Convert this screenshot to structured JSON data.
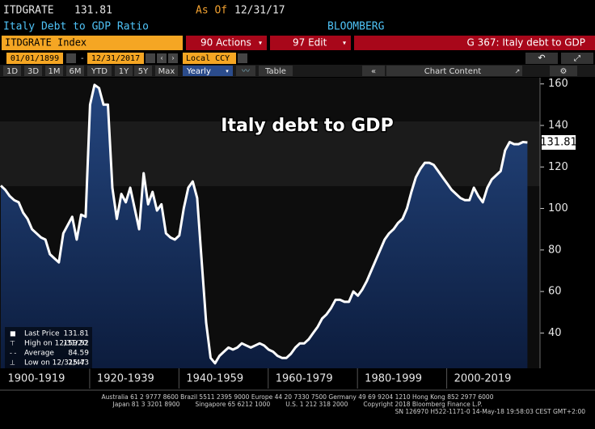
{
  "header": {
    "ticker": "ITDGRATE",
    "price": "131.81",
    "as_of_label": "As Of",
    "as_of_date": "12/31/17",
    "description": "Italy Debt to GDP Ratio",
    "source": "BLOOMBERG"
  },
  "toolbar": {
    "security": "ITDGRATE Index",
    "actions": "90 Actions",
    "edit": "97 Edit",
    "chart_name": "G 367: Italy debt to GDP",
    "start_date": "01/01/1899",
    "end_date": "12/31/2017",
    "currency": "Local CCY",
    "periods": [
      "1D",
      "3D",
      "1M",
      "6M",
      "YTD",
      "1Y",
      "5Y",
      "Max"
    ],
    "frequency": "Yearly",
    "table": "Table",
    "chart_content": "Chart Content"
  },
  "chart_data": {
    "type": "area",
    "title": "Italy debt to GDP",
    "color": "#ffffff",
    "x": [
      1899,
      1900,
      1901,
      1902,
      1903,
      1904,
      1905,
      1906,
      1907,
      1908,
      1909,
      1910,
      1911,
      1912,
      1913,
      1914,
      1915,
      1916,
      1917,
      1918,
      1919,
      1920,
      1921,
      1922,
      1923,
      1924,
      1925,
      1926,
      1927,
      1928,
      1929,
      1930,
      1931,
      1932,
      1933,
      1934,
      1935,
      1936,
      1937,
      1938,
      1939,
      1940,
      1941,
      1942,
      1943,
      1944,
      1945,
      1946,
      1947,
      1948,
      1949,
      1950,
      1951,
      1952,
      1953,
      1954,
      1955,
      1956,
      1957,
      1958,
      1959,
      1960,
      1961,
      1962,
      1963,
      1964,
      1965,
      1966,
      1967,
      1968,
      1969,
      1970,
      1971,
      1972,
      1973,
      1974,
      1975,
      1976,
      1977,
      1978,
      1979,
      1980,
      1981,
      1982,
      1983,
      1984,
      1985,
      1986,
      1987,
      1988,
      1989,
      1990,
      1991,
      1992,
      1993,
      1994,
      1995,
      1996,
      1997,
      1998,
      1999,
      2000,
      2001,
      2002,
      2003,
      2004,
      2005,
      2006,
      2007,
      2008,
      2009,
      2010,
      2011,
      2012,
      2013,
      2014,
      2015,
      2016,
      2017
    ],
    "values": [
      111,
      109,
      106,
      104,
      103,
      98,
      95,
      90,
      88,
      86,
      85,
      78,
      76,
      74,
      88,
      92,
      96,
      85,
      97,
      96,
      150,
      159.52,
      158,
      150,
      150,
      110,
      95,
      107,
      103,
      110,
      100,
      90,
      117,
      102,
      108,
      99,
      102,
      88,
      86,
      85,
      87,
      100,
      110,
      113,
      105,
      75,
      45,
      28,
      25.43,
      29,
      31,
      33,
      32,
      33,
      35,
      34,
      33,
      34,
      35,
      34,
      32,
      31,
      29,
      28,
      28,
      30,
      33,
      35,
      35,
      37,
      40,
      43,
      47,
      49,
      52,
      56,
      56,
      55,
      55,
      60,
      58,
      61,
      65,
      70,
      75,
      80,
      85,
      88,
      90,
      93,
      95,
      100,
      108,
      115,
      119,
      122,
      122,
      121,
      118,
      115,
      112,
      109,
      107,
      105,
      104,
      104,
      110,
      106,
      103,
      110,
      114,
      116,
      118,
      128,
      132,
      131,
      131,
      132,
      131.81
    ],
    "xlim": [
      1899,
      2020
    ],
    "xticks": [
      {
        "value": 1900,
        "label": "1900-1919"
      },
      {
        "value": 1920,
        "label": "1920-1939"
      },
      {
        "value": 1940,
        "label": "1940-1959"
      },
      {
        "value": 1960,
        "label": "1960-1979"
      },
      {
        "value": 1980,
        "label": "1980-1999"
      },
      {
        "value": 2000,
        "label": "2000-2019"
      }
    ],
    "ylim": [
      23,
      163
    ],
    "yticks": [
      40,
      60,
      80,
      100,
      120,
      140,
      160
    ],
    "last_price": 131.81,
    "stats": [
      {
        "label": "Last Price",
        "value": 131.81
      },
      {
        "label": "High on 12/31/20",
        "value": 159.52
      },
      {
        "label": "Average",
        "value": 84.59
      },
      {
        "label": "Low on 12/31/47",
        "value": 25.43
      }
    ]
  },
  "footer": [
    "Australia 61 2 9777 8600 Brazil 5511 2395 9000 Europe 44 20 7330 7500 Germany 49 69 9204 1210 Hong Kong 852 2977 6000",
    "Japan 81 3 3201 8900        Singapore 65 6212 1000        U.S. 1 212 318 2000        Copyright 2018 Bloomberg Finance L.P.",
    "SN 126970 H522-1171-0 14-May-18 19:58:03 CEST GMT+2:00"
  ]
}
